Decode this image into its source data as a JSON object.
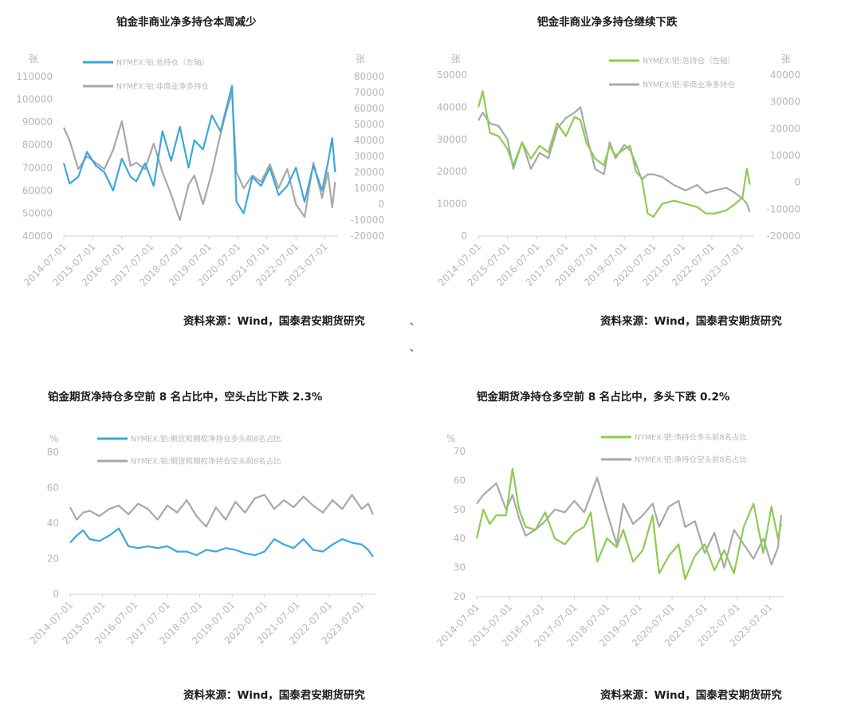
{
  "source_text": "资料来源：Wind，国泰君安期货研究",
  "stray_marks": [
    "、",
    "、"
  ],
  "colors": {
    "blue": "#3aa8dc",
    "gray": "#a8a8a8",
    "green": "#8ccc4e",
    "axis": "#d0d0d0",
    "text": "#b7b7b7"
  },
  "chart_data": [
    {
      "type": "line",
      "title": "铂金非商业净多持仓本周减少",
      "left_unit": "张",
      "right_unit": "张",
      "x_labels": [
        "2014-07-01",
        "2015-07-01",
        "2016-07-01",
        "2017-07-01",
        "2018-07-01",
        "2019-07-01",
        "2020-07-01",
        "2021-07-01",
        "2022-07-01",
        "2023-07-01"
      ],
      "left_ticks": [
        "110000",
        "100000",
        "90000",
        "80000",
        "70000",
        "60000",
        "50000",
        "40000"
      ],
      "right_ticks": [
        "80000",
        "70000",
        "60000",
        "50000",
        "40000",
        "30000",
        "20000",
        "10000",
        "0",
        "-10000",
        "-20000"
      ],
      "ylim_left": [
        40000,
        110000
      ],
      "ylim_right": [
        -20000,
        80000
      ],
      "series": [
        {
          "name": "NYMEX:铂:总持仓（左轴）",
          "color": "#3aa8dc",
          "axis": "left",
          "x": [
            2014.5,
            2014.7,
            2015.0,
            2015.3,
            2015.6,
            2015.9,
            2016.2,
            2016.5,
            2016.8,
            2017.0,
            2017.3,
            2017.6,
            2017.9,
            2018.2,
            2018.5,
            2018.8,
            2019.0,
            2019.3,
            2019.6,
            2019.9,
            2020.1,
            2020.3,
            2020.45,
            2020.7,
            2021.0,
            2021.3,
            2021.6,
            2021.9,
            2022.2,
            2022.5,
            2022.8,
            2023.1,
            2023.4,
            2023.6,
            2023.75,
            2023.85
          ],
          "values": [
            72000,
            63000,
            66000,
            77000,
            71000,
            68000,
            60000,
            74000,
            66000,
            64000,
            72000,
            62000,
            86000,
            73000,
            88000,
            70000,
            82000,
            78000,
            93000,
            86000,
            96000,
            106000,
            55000,
            50000,
            66000,
            62000,
            70000,
            58000,
            62000,
            70000,
            55000,
            71000,
            60000,
            72000,
            83000,
            68000
          ]
        },
        {
          "name": "NYMEX:铂:非商业净多持仓",
          "color": "#a8a8a8",
          "axis": "right",
          "x": [
            2014.5,
            2014.7,
            2015.0,
            2015.3,
            2015.6,
            2015.9,
            2016.2,
            2016.5,
            2016.8,
            2017.0,
            2017.3,
            2017.6,
            2017.9,
            2018.2,
            2018.5,
            2018.8,
            2019.0,
            2019.3,
            2019.6,
            2019.9,
            2020.1,
            2020.3,
            2020.45,
            2020.7,
            2021.0,
            2021.3,
            2021.6,
            2021.9,
            2022.2,
            2022.5,
            2022.8,
            2023.1,
            2023.4,
            2023.6,
            2023.75,
            2023.85
          ],
          "values": [
            48000,
            40000,
            22000,
            30000,
            26000,
            22000,
            34000,
            52000,
            24000,
            26000,
            22000,
            38000,
            20000,
            6000,
            -10000,
            12000,
            18000,
            0,
            20000,
            44000,
            58000,
            70000,
            20000,
            10000,
            18000,
            14000,
            25000,
            10000,
            22000,
            0,
            -8000,
            26000,
            4000,
            20000,
            -2000,
            14000
          ]
        }
      ]
    },
    {
      "type": "line",
      "title": "钯金非商业净多持仓继续下跌",
      "left_unit": "张",
      "right_unit": "张",
      "x_labels": [
        "2014-07-01",
        "2015-07-01",
        "2016-07-01",
        "2017-07-01",
        "2018-07-01",
        "2019-07-01",
        "2020-07-01",
        "2021-07-01",
        "2022-07-01",
        "2023-07-01"
      ],
      "left_ticks": [
        "50000",
        "40000",
        "30000",
        "20000",
        "10000",
        "0"
      ],
      "right_ticks": [
        "40000",
        "30000",
        "20000",
        "10000",
        "0",
        "-10000",
        "-20000"
      ],
      "ylim_left": [
        0,
        50000
      ],
      "ylim_right": [
        -20000,
        40000
      ],
      "series": [
        {
          "name": "NYMEX:钯:总持仓（左轴）",
          "color": "#8ccc4e",
          "axis": "left",
          "x": [
            2014.5,
            2014.65,
            2014.9,
            2015.2,
            2015.5,
            2015.7,
            2016.0,
            2016.3,
            2016.6,
            2016.9,
            2017.2,
            2017.5,
            2017.8,
            2018.0,
            2018.2,
            2018.5,
            2018.8,
            2019.0,
            2019.2,
            2019.5,
            2019.7,
            2019.9,
            2020.1,
            2020.3,
            2020.5,
            2020.8,
            2021.2,
            2021.6,
            2022.0,
            2022.3,
            2022.6,
            2023.0,
            2023.3,
            2023.55,
            2023.7,
            2023.8
          ],
          "values": [
            40000,
            45000,
            32000,
            31000,
            27000,
            22000,
            29000,
            24000,
            28000,
            26000,
            35000,
            31000,
            37000,
            36000,
            29000,
            24000,
            22000,
            28000,
            25000,
            27000,
            28000,
            20000,
            18000,
            7000,
            6000,
            10000,
            11000,
            10000,
            9000,
            7000,
            7000,
            8000,
            10000,
            12000,
            21000,
            16000
          ]
        },
        {
          "name": "NYMEX:钯:非商业净多持仓",
          "color": "#a8a8a8",
          "axis": "right",
          "x": [
            2014.5,
            2014.65,
            2014.9,
            2015.2,
            2015.5,
            2015.7,
            2016.0,
            2016.3,
            2016.6,
            2016.9,
            2017.2,
            2017.5,
            2017.8,
            2018.0,
            2018.2,
            2018.5,
            2018.8,
            2019.0,
            2019.2,
            2019.5,
            2019.7,
            2019.9,
            2020.1,
            2020.3,
            2020.5,
            2020.8,
            2021.2,
            2021.6,
            2022.0,
            2022.3,
            2022.6,
            2023.0,
            2023.3,
            2023.55,
            2023.7,
            2023.8
          ],
          "values": [
            23000,
            26000,
            22000,
            21000,
            16000,
            5000,
            15000,
            5000,
            11000,
            9000,
            20000,
            24000,
            26000,
            28000,
            18000,
            5000,
            3000,
            15000,
            9000,
            14000,
            12000,
            7000,
            1000,
            3000,
            3000,
            2000,
            -1000,
            -3000,
            -1000,
            -4000,
            -3000,
            -2000,
            -4000,
            -6000,
            -8000,
            -11000
          ]
        }
      ]
    },
    {
      "type": "line",
      "title": "铂金期货净持仓多空前 8 名占比中，空头占比下跌 2.3%",
      "left_unit": "%",
      "x_labels": [
        "2014-07-01",
        "2015-07-01",
        "2016-07-01",
        "2017-07-01",
        "2018-07-01",
        "2019-07-01",
        "2020-07-01",
        "2021-07-01",
        "2022-07-01",
        "2023-07-01"
      ],
      "left_ticks": [
        "80",
        "60",
        "40",
        "20",
        "0"
      ],
      "ylim_left": [
        0,
        80
      ],
      "series": [
        {
          "name": "NYMEX:铂:期货和期权净持仓多头前8名占比",
          "color": "#3aa8dc",
          "axis": "left",
          "x": [
            2014.5,
            2014.7,
            2014.9,
            2015.1,
            2015.4,
            2015.7,
            2016.0,
            2016.3,
            2016.6,
            2016.9,
            2017.2,
            2017.5,
            2017.8,
            2018.1,
            2018.4,
            2018.7,
            2019.0,
            2019.3,
            2019.6,
            2019.9,
            2020.2,
            2020.5,
            2020.8,
            2021.1,
            2021.4,
            2021.7,
            2022.0,
            2022.3,
            2022.6,
            2022.9,
            2023.2,
            2023.5,
            2023.7,
            2023.85
          ],
          "values": [
            29,
            33,
            36,
            31,
            30,
            33,
            37,
            27,
            26,
            27,
            26,
            27,
            24,
            24,
            22,
            25,
            24,
            26,
            25,
            23,
            22,
            24,
            31,
            28,
            26,
            31,
            25,
            24,
            28,
            31,
            29,
            28,
            25,
            21
          ]
        },
        {
          "name": "NYMEX:铂:期货和期权净持仓空头前8名占比",
          "color": "#a8a8a8",
          "axis": "left",
          "x": [
            2014.5,
            2014.7,
            2014.9,
            2015.1,
            2015.4,
            2015.7,
            2016.0,
            2016.3,
            2016.6,
            2016.9,
            2017.2,
            2017.5,
            2017.8,
            2018.1,
            2018.4,
            2018.7,
            2019.0,
            2019.3,
            2019.6,
            2019.9,
            2020.2,
            2020.5,
            2020.8,
            2021.1,
            2021.4,
            2021.7,
            2022.0,
            2022.3,
            2022.6,
            2022.9,
            2023.2,
            2023.5,
            2023.7,
            2023.85
          ],
          "values": [
            49,
            42,
            46,
            47,
            44,
            48,
            50,
            45,
            51,
            48,
            42,
            50,
            46,
            53,
            44,
            38,
            49,
            42,
            52,
            46,
            54,
            56,
            48,
            53,
            49,
            55,
            50,
            46,
            53,
            48,
            56,
            48,
            51,
            45
          ]
        }
      ]
    },
    {
      "type": "line",
      "title": "钯金期货净持仓多空前 8 名占比中，多头下跌 0.2%",
      "left_unit": "%",
      "x_labels": [
        "2014-07-01",
        "2015-07-01",
        "2016-07-01",
        "2017-07-01",
        "2018-07-01",
        "2019-07-01",
        "2020-07-01",
        "2021-07-01",
        "2022-07-01",
        "2023-07-01"
      ],
      "left_ticks": [
        "70",
        "60",
        "50",
        "40",
        "30",
        "20"
      ],
      "ylim_left": [
        20,
        70
      ],
      "series": [
        {
          "name": "NYMEX:钯:净持仓多头前8名占比",
          "color": "#8ccc4e",
          "axis": "left",
          "x": [
            2014.5,
            2014.7,
            2014.9,
            2015.1,
            2015.4,
            2015.6,
            2015.8,
            2016.0,
            2016.3,
            2016.6,
            2016.9,
            2017.2,
            2017.5,
            2017.8,
            2018.0,
            2018.2,
            2018.5,
            2018.8,
            2019.0,
            2019.3,
            2019.6,
            2019.9,
            2020.1,
            2020.4,
            2020.7,
            2020.9,
            2021.2,
            2021.5,
            2021.8,
            2022.1,
            2022.4,
            2022.7,
            2023.0,
            2023.3,
            2023.55,
            2023.75,
            2023.85
          ],
          "values": [
            40,
            50,
            45,
            48,
            48,
            64,
            50,
            44,
            43,
            49,
            40,
            38,
            42,
            44,
            49,
            32,
            40,
            37,
            43,
            32,
            36,
            48,
            28,
            34,
            38,
            26,
            34,
            38,
            29,
            36,
            28,
            44,
            52,
            35,
            51,
            40,
            45
          ]
        },
        {
          "name": "NYMEX:钯:净持仓空头前8名占比",
          "color": "#a8a8a8",
          "axis": "left",
          "x": [
            2014.5,
            2014.7,
            2014.9,
            2015.1,
            2015.4,
            2015.6,
            2015.8,
            2016.0,
            2016.3,
            2016.6,
            2016.9,
            2017.2,
            2017.5,
            2017.8,
            2018.0,
            2018.2,
            2018.5,
            2018.8,
            2019.0,
            2019.3,
            2019.6,
            2019.9,
            2020.1,
            2020.4,
            2020.7,
            2020.9,
            2021.2,
            2021.5,
            2021.8,
            2022.1,
            2022.4,
            2022.7,
            2023.0,
            2023.3,
            2023.55,
            2023.75,
            2023.85
          ],
          "values": [
            52,
            55,
            57,
            59,
            50,
            55,
            47,
            41,
            43,
            46,
            50,
            49,
            53,
            49,
            55,
            61,
            49,
            38,
            52,
            45,
            48,
            52,
            44,
            51,
            53,
            44,
            46,
            35,
            42,
            30,
            43,
            38,
            33,
            40,
            31,
            37,
            48
          ]
        }
      ]
    }
  ]
}
